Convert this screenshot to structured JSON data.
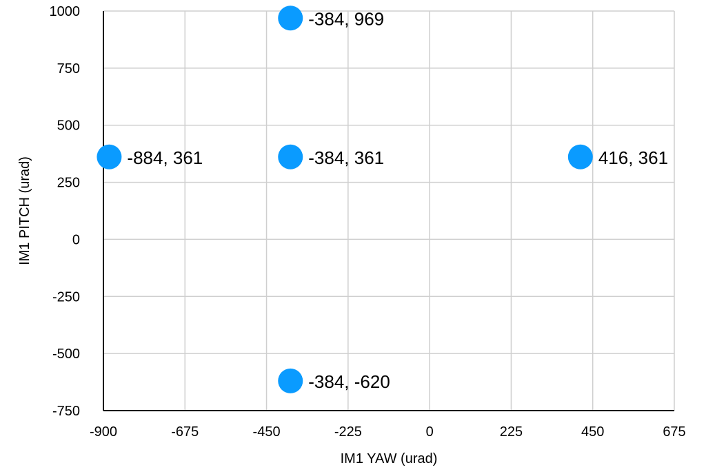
{
  "chart_data": {
    "type": "scatter",
    "xlabel": "IM1 YAW (urad)",
    "ylabel": "IM1 PITCH (urad)",
    "xlim": [
      -900,
      675
    ],
    "ylim": [
      -750,
      1000
    ],
    "x_ticks": [
      -900,
      -675,
      -450,
      -225,
      0,
      225,
      450,
      675
    ],
    "y_ticks": [
      -750,
      -500,
      -250,
      0,
      250,
      500,
      750,
      1000
    ],
    "grid": true,
    "point_color": "#0a9bff",
    "points": [
      {
        "x": -384,
        "y": 969,
        "label": "-384, 969"
      },
      {
        "x": -884,
        "y": 361,
        "label": "-884, 361"
      },
      {
        "x": -384,
        "y": 361,
        "label": "-384, 361"
      },
      {
        "x": 416,
        "y": 361,
        "label": "416, 361"
      },
      {
        "x": -384,
        "y": -620,
        "label": "-384, -620"
      }
    ]
  }
}
